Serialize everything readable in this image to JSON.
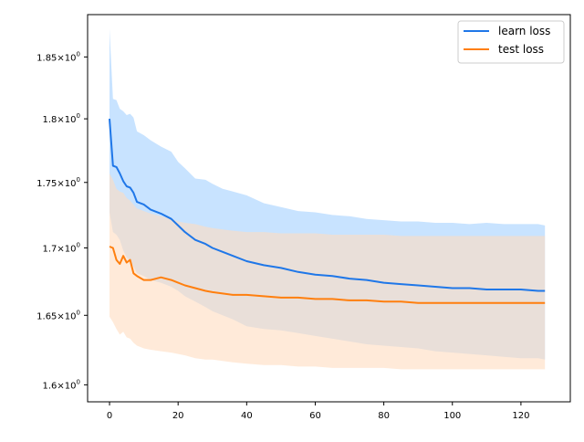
{
  "chart_data": {
    "type": "line",
    "title": "",
    "xlabel": "",
    "ylabel": "",
    "x_scale": "linear",
    "y_scale": "log",
    "xlim": [
      -6.4,
      134.4
    ],
    "ylim": [
      1.588,
      1.885
    ],
    "x_ticks": [
      0,
      20,
      40,
      60,
      80,
      100,
      120
    ],
    "x_tick_labels": [
      "0",
      "20",
      "40",
      "60",
      "80",
      "100",
      "120"
    ],
    "y_ticks": [
      1.6,
      1.65,
      1.7,
      1.75,
      1.8,
      1.85
    ],
    "y_tick_labels": [
      {
        "mantissa": "1.6",
        "sup": "0"
      },
      {
        "mantissa": "1.65",
        "sup": "0"
      },
      {
        "mantissa": "1.7",
        "sup": "0"
      },
      {
        "mantissa": "1.75",
        "sup": "0"
      },
      {
        "mantissa": "1.8",
        "sup": "0"
      },
      {
        "mantissa": "1.85",
        "sup": "0"
      }
    ],
    "times_symbol": "×10",
    "grid": false,
    "legend_position": "top-right",
    "series": [
      {
        "name": "learn loss",
        "color": "#1f77e8",
        "band_color": "#badcff",
        "x": [
          0,
          1,
          2,
          3,
          4,
          5,
          6,
          7,
          8,
          10,
          12,
          15,
          18,
          20,
          22,
          25,
          28,
          30,
          33,
          36,
          40,
          45,
          50,
          55,
          60,
          65,
          70,
          75,
          80,
          85,
          90,
          95,
          100,
          105,
          110,
          115,
          120,
          125,
          127
        ],
        "mean": [
          1.8,
          1.763,
          1.762,
          1.757,
          1.751,
          1.747,
          1.746,
          1.742,
          1.735,
          1.733,
          1.729,
          1.726,
          1.722,
          1.717,
          1.712,
          1.706,
          1.703,
          1.7,
          1.697,
          1.694,
          1.69,
          1.687,
          1.685,
          1.682,
          1.68,
          1.679,
          1.677,
          1.676,
          1.674,
          1.673,
          1.672,
          1.671,
          1.67,
          1.67,
          1.669,
          1.669,
          1.669,
          1.668,
          1.668
        ],
        "upper": [
          1.873,
          1.816,
          1.815,
          1.808,
          1.806,
          1.803,
          1.804,
          1.801,
          1.79,
          1.787,
          1.783,
          1.778,
          1.774,
          1.766,
          1.761,
          1.753,
          1.752,
          1.749,
          1.745,
          1.743,
          1.74,
          1.734,
          1.731,
          1.728,
          1.727,
          1.725,
          1.724,
          1.722,
          1.721,
          1.72,
          1.72,
          1.719,
          1.719,
          1.718,
          1.719,
          1.718,
          1.718,
          1.718,
          1.717
        ],
        "lower": [
          1.727,
          1.712,
          1.71,
          1.706,
          1.698,
          1.693,
          1.69,
          1.686,
          1.681,
          1.679,
          1.676,
          1.674,
          1.671,
          1.668,
          1.664,
          1.66,
          1.656,
          1.653,
          1.65,
          1.647,
          1.642,
          1.64,
          1.639,
          1.637,
          1.635,
          1.633,
          1.631,
          1.629,
          1.628,
          1.627,
          1.626,
          1.624,
          1.623,
          1.622,
          1.621,
          1.62,
          1.619,
          1.619,
          1.618
        ]
      },
      {
        "name": "test loss",
        "color": "#ff7f0e",
        "band_color": "#ffdcbf",
        "x": [
          0,
          1,
          2,
          3,
          4,
          5,
          6,
          7,
          8,
          10,
          12,
          15,
          18,
          20,
          22,
          25,
          28,
          30,
          33,
          36,
          40,
          45,
          50,
          55,
          60,
          65,
          70,
          75,
          80,
          85,
          90,
          95,
          100,
          105,
          110,
          115,
          120,
          125,
          127
        ],
        "mean": [
          1.701,
          1.7,
          1.691,
          1.688,
          1.694,
          1.689,
          1.691,
          1.681,
          1.679,
          1.676,
          1.676,
          1.678,
          1.676,
          1.674,
          1.672,
          1.67,
          1.668,
          1.667,
          1.666,
          1.665,
          1.665,
          1.664,
          1.663,
          1.663,
          1.662,
          1.662,
          1.661,
          1.661,
          1.66,
          1.66,
          1.659,
          1.659,
          1.659,
          1.659,
          1.659,
          1.659,
          1.659,
          1.659,
          1.659
        ],
        "upper": [
          1.757,
          1.752,
          1.745,
          1.743,
          1.742,
          1.738,
          1.736,
          1.733,
          1.73,
          1.728,
          1.726,
          1.724,
          1.722,
          1.72,
          1.719,
          1.718,
          1.716,
          1.715,
          1.714,
          1.713,
          1.712,
          1.712,
          1.711,
          1.711,
          1.711,
          1.71,
          1.71,
          1.71,
          1.71,
          1.709,
          1.709,
          1.709,
          1.709,
          1.709,
          1.709,
          1.709,
          1.709,
          1.709,
          1.709
        ],
        "lower": [
          1.649,
          1.645,
          1.64,
          1.636,
          1.638,
          1.634,
          1.633,
          1.63,
          1.628,
          1.626,
          1.625,
          1.624,
          1.623,
          1.622,
          1.621,
          1.619,
          1.618,
          1.618,
          1.617,
          1.616,
          1.615,
          1.614,
          1.614,
          1.613,
          1.613,
          1.612,
          1.612,
          1.612,
          1.612,
          1.611,
          1.611,
          1.611,
          1.611,
          1.611,
          1.611,
          1.611,
          1.611,
          1.611,
          1.611
        ]
      }
    ]
  }
}
